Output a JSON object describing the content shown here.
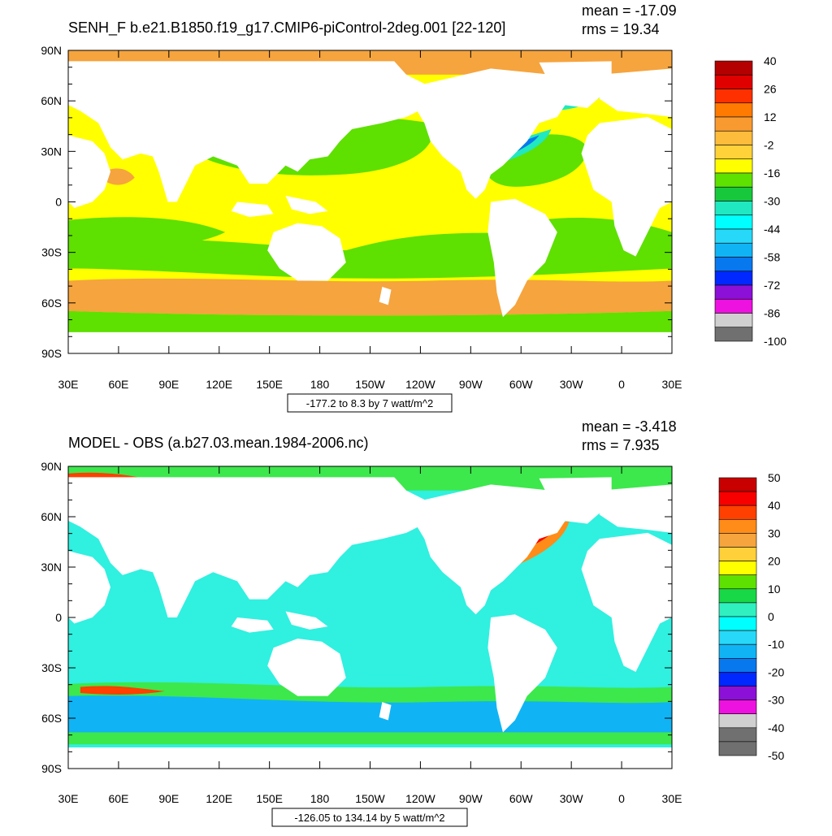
{
  "panels": [
    {
      "title": "SENH_F b.e21.B1850.f19_g17.CMIP6-piControl-2deg.001 [22-120]",
      "mean": "mean = -17.09",
      "rms": "rms = 19.34",
      "range_caption": "-177.2 to 8.3 by 7 watt/m^2",
      "lat_labels": [
        "90N",
        "60N",
        "30N",
        "0",
        "30S",
        "60S",
        "90S"
      ],
      "lon_labels": [
        "30E",
        "60E",
        "90E",
        "120E",
        "150E",
        "180",
        "150W",
        "120W",
        "90W",
        "60W",
        "30W",
        "0",
        "30E"
      ],
      "colorbar": {
        "labels": [
          "40",
          "26",
          "12",
          "-2",
          "-16",
          "-30",
          "-44",
          "-58",
          "-72",
          "-86",
          "-100"
        ],
        "colors": [
          "#b40000",
          "#e00000",
          "#ff3000",
          "#ff7a00",
          "#f89a30",
          "#fdbc3c",
          "#ffd23a",
          "#ffff00",
          "#5ee000",
          "#18c83c",
          "#20e8c0",
          "#00ffff",
          "#28d8f8",
          "#10b4f4",
          "#0878ee",
          "#0028ff",
          "#8c10d8",
          "#ee12e0",
          "#d0d0d0",
          "#707070"
        ]
      },
      "ocean_fields": [
        {
          "region": "arctic",
          "color": "#f6a43e"
        },
        {
          "region": "tropics",
          "color": "#ffff00"
        },
        {
          "region": "subtropical-gyres",
          "color": "#5ee000"
        },
        {
          "region": "western-boundary-currents",
          "color": "#20e8c0"
        },
        {
          "region": "southern-ocean",
          "color": "#f6a43e"
        }
      ]
    },
    {
      "title": "MODEL - OBS (a.b27.03.mean.1984-2006.nc)",
      "mean": "mean = -3.418",
      "rms": "rms = 7.935",
      "range_caption": "-126.05 to 134.14 by 5 watt/m^2",
      "lat_labels": [
        "90N",
        "60N",
        "30N",
        "0",
        "30S",
        "60S",
        "90S"
      ],
      "lon_labels": [
        "30E",
        "60E",
        "90E",
        "120E",
        "150E",
        "180",
        "150W",
        "120W",
        "90W",
        "60W",
        "30W",
        "0",
        "30E"
      ],
      "colorbar": {
        "labels": [
          "50",
          "40",
          "30",
          "20",
          "10",
          "0",
          "-10",
          "-20",
          "-30",
          "-40",
          "-50"
        ],
        "colors": [
          "#c80000",
          "#f80000",
          "#ff4000",
          "#ff8c18",
          "#f6a43e",
          "#ffd03a",
          "#ffff00",
          "#5ee000",
          "#18d848",
          "#30f0c0",
          "#00ffff",
          "#28d8f8",
          "#10b4f4",
          "#0878ee",
          "#0028ff",
          "#8c10d8",
          "#ee12e0",
          "#d0d0d0",
          "#707070",
          "#707070"
        ]
      },
      "ocean_fields": [
        {
          "region": "arctic",
          "color": "#3ce84c"
        },
        {
          "region": "global-ocean",
          "color": "#30f0e0"
        },
        {
          "region": "southern-ocean",
          "color": "#3ce84c"
        },
        {
          "region": "gulf-stream",
          "color": "#ff3000"
        },
        {
          "region": "barents-sea",
          "color": "#c80000"
        }
      ]
    }
  ]
}
